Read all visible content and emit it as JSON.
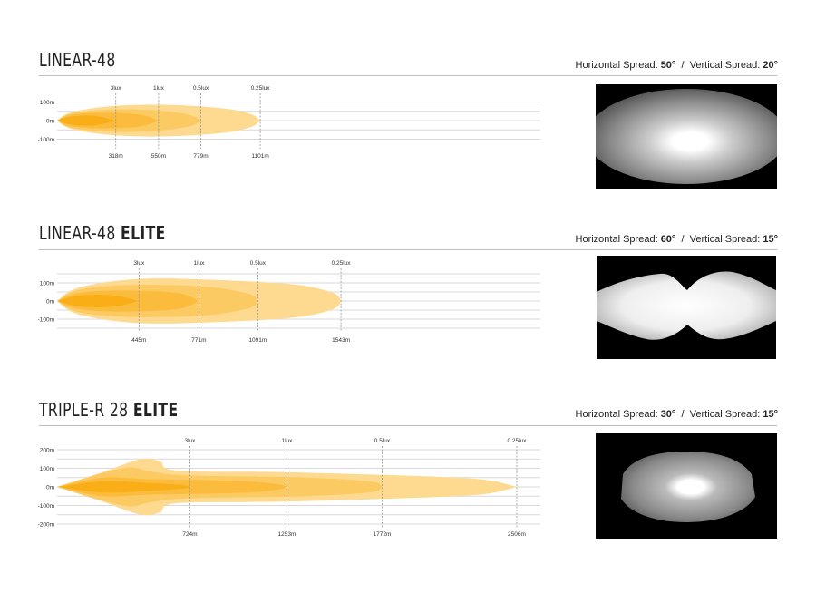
{
  "colors": {
    "lux_0_25": "#fdda90",
    "lux_0_5": "#fcca62",
    "lux_1": "#fbbc3e",
    "lux_3": "#f9ae18",
    "grid": "#d9d9d9",
    "marker": "#999999"
  },
  "chart_data": [
    {
      "type": "area",
      "title": "LINEAR-48",
      "title_suffix": "",
      "spread": {
        "horizontal_label": "Horizontal Spread:",
        "horizontal": "50°",
        "separator": "/",
        "vertical_label": "Vertical Spread:",
        "vertical": "20°"
      },
      "xlabel": "",
      "ylabel": "",
      "y_ticks": [
        {
          "value": 100,
          "label": "100m"
        },
        {
          "value": 0,
          "label": "0m"
        },
        {
          "value": -100,
          "label": "-100m"
        }
      ],
      "ylim": [
        -100,
        100
      ],
      "markers": [
        {
          "lux": "3lux",
          "distance": "318m",
          "value": 318
        },
        {
          "lux": "1lux",
          "distance": "550m",
          "value": 550
        },
        {
          "lux": "0.5lux",
          "distance": "779m",
          "value": 779
        },
        {
          "lux": "0.25lux",
          "distance": "1101m",
          "value": 1101
        }
      ],
      "contours": [
        {
          "lux": 0.25,
          "points": [
            [
              0,
              0
            ],
            [
              80,
              45
            ],
            [
              300,
              78
            ],
            [
              600,
              85
            ],
            [
              900,
              66
            ],
            [
              1050,
              35
            ],
            [
              1101,
              0
            ]
          ]
        },
        {
          "lux": 0.5,
          "points": [
            [
              0,
              0
            ],
            [
              80,
              40
            ],
            [
              300,
              60
            ],
            [
              550,
              55
            ],
            [
              720,
              30
            ],
            [
              779,
              0
            ]
          ]
        },
        {
          "lux": 1,
          "points": [
            [
              0,
              0
            ],
            [
              80,
              32
            ],
            [
              250,
              42
            ],
            [
              450,
              32
            ],
            [
              550,
              0
            ]
          ]
        },
        {
          "lux": 3,
          "points": [
            [
              0,
              0
            ],
            [
              80,
              22
            ],
            [
              200,
              26
            ],
            [
              318,
              0
            ]
          ]
        }
      ]
    },
    {
      "type": "area",
      "title": "LINEAR-48",
      "title_suffix": "ELITE",
      "spread": {
        "horizontal_label": "Horizontal Spread:",
        "horizontal": "60°",
        "separator": "/",
        "vertical_label": "Vertical Spread:",
        "vertical": "15°"
      },
      "xlabel": "",
      "ylabel": "",
      "y_ticks": [
        {
          "value": 100,
          "label": "100m"
        },
        {
          "value": 0,
          "label": "0m"
        },
        {
          "value": -100,
          "label": "-100m"
        }
      ],
      "ylim": [
        -150,
        150
      ],
      "markers": [
        {
          "lux": "3lux",
          "distance": "445m",
          "value": 445
        },
        {
          "lux": "1lux",
          "distance": "771m",
          "value": 771
        },
        {
          "lux": "0.5lux",
          "distance": "1091m",
          "value": 1091
        },
        {
          "lux": "0.25lux",
          "distance": "1543m",
          "value": 1543
        }
      ],
      "contours": [
        {
          "lux": 0.25,
          "points": [
            [
              0,
              0
            ],
            [
              120,
              75
            ],
            [
              450,
              122
            ],
            [
              900,
              115
            ],
            [
              1300,
              90
            ],
            [
              1500,
              45
            ],
            [
              1543,
              0
            ]
          ]
        },
        {
          "lux": 0.5,
          "points": [
            [
              0,
              0
            ],
            [
              120,
              62
            ],
            [
              400,
              88
            ],
            [
              800,
              80
            ],
            [
              1040,
              40
            ],
            [
              1091,
              0
            ]
          ]
        },
        {
          "lux": 1,
          "points": [
            [
              0,
              0
            ],
            [
              120,
              45
            ],
            [
              350,
              58
            ],
            [
              650,
              45
            ],
            [
              771,
              0
            ]
          ]
        },
        {
          "lux": 3,
          "points": [
            [
              0,
              0
            ],
            [
              120,
              30
            ],
            [
              300,
              32
            ],
            [
              445,
              0
            ]
          ]
        }
      ]
    },
    {
      "type": "area",
      "title": "TRIPLE-R 28",
      "title_suffix": "ELITE",
      "spread": {
        "horizontal_label": "Horizontal Spread:",
        "horizontal": "30°",
        "separator": "/",
        "vertical_label": "Vertical Spread:",
        "vertical": "15°"
      },
      "xlabel": "",
      "ylabel": "",
      "y_ticks": [
        {
          "value": 200,
          "label": "200m"
        },
        {
          "value": 100,
          "label": "100m"
        },
        {
          "value": 0,
          "label": "0m"
        },
        {
          "value": -100,
          "label": "-100m"
        },
        {
          "value": -200,
          "label": "-200m"
        }
      ],
      "ylim": [
        -200,
        200
      ],
      "markers": [
        {
          "lux": "3lux",
          "distance": "724m",
          "value": 724
        },
        {
          "lux": "1lux",
          "distance": "1253m",
          "value": 1253
        },
        {
          "lux": "0.5lux",
          "distance": "1772m",
          "value": 1772
        },
        {
          "lux": "0.25lux",
          "distance": "2506m",
          "value": 2506
        }
      ],
      "contours": [
        {
          "lux": 0.25,
          "points": [
            [
              0,
              0
            ],
            [
              250,
              80
            ],
            [
              450,
              148
            ],
            [
              560,
              138
            ],
            [
              650,
              88
            ],
            [
              1200,
              80
            ],
            [
              1800,
              64
            ],
            [
              2300,
              42
            ],
            [
              2506,
              0
            ]
          ]
        },
        {
          "lux": 0.5,
          "points": [
            [
              0,
              0
            ],
            [
              250,
              75
            ],
            [
              400,
              105
            ],
            [
              500,
              85
            ],
            [
              700,
              62
            ],
            [
              1300,
              52
            ],
            [
              1700,
              30
            ],
            [
              1772,
              0
            ]
          ]
        },
        {
          "lux": 1,
          "points": [
            [
              0,
              0
            ],
            [
              250,
              50
            ],
            [
              500,
              42
            ],
            [
              1000,
              32
            ],
            [
              1200,
              15
            ],
            [
              1253,
              0
            ]
          ]
        },
        {
          "lux": 3,
          "points": [
            [
              0,
              0
            ],
            [
              250,
              30
            ],
            [
              500,
              22
            ],
            [
              700,
              8
            ],
            [
              724,
              0
            ]
          ]
        }
      ]
    }
  ]
}
